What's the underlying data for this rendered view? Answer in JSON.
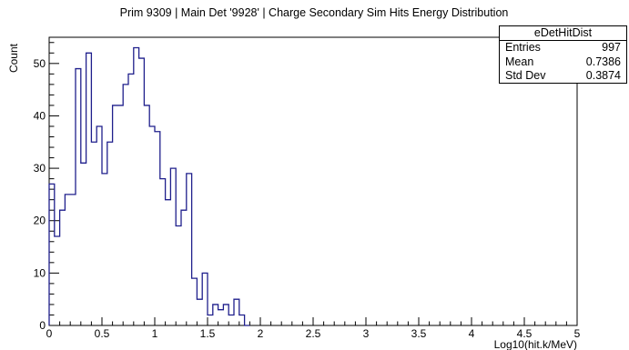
{
  "chart_data": {
    "type": "histogram",
    "title": "Prim 9309 | Main Det '9928' | Charge Secondary Sim Hits Energy Distribution",
    "xlabel": "Log10(hit.k/MeV)",
    "ylabel": "Count",
    "xlim": [
      0,
      5
    ],
    "ylim": [
      0,
      55
    ],
    "x_ticks": [
      0,
      0.5,
      1,
      1.5,
      2,
      2.5,
      3,
      3.5,
      4,
      4.5,
      5
    ],
    "x_tick_labels": [
      "0",
      "0.5",
      "1",
      "1.5",
      "2",
      "2.5",
      "3",
      "3.5",
      "4",
      "4.5",
      "5"
    ],
    "y_ticks": [
      0,
      10,
      20,
      30,
      40,
      50
    ],
    "y_tick_labels": [
      "0",
      "10",
      "20",
      "30",
      "40",
      "50"
    ],
    "bin_width": 0.05,
    "bin_edges_start": 0,
    "values": [
      27,
      17,
      22,
      25,
      25,
      49,
      31,
      52,
      35,
      38,
      29,
      35,
      42,
      42,
      46,
      48,
      53,
      51,
      42,
      38,
      37,
      28,
      24,
      30,
      19,
      22,
      29,
      9,
      5,
      10,
      2,
      4,
      3,
      4,
      2,
      5,
      2,
      0
    ],
    "line_color": "#1f1f8c",
    "stats": {
      "name": "eDetHitDist",
      "rows": [
        {
          "label": "Entries",
          "value": "997"
        },
        {
          "label": "Mean",
          "value": "0.7386"
        },
        {
          "label": "Std Dev",
          "value": "0.3874"
        }
      ]
    }
  }
}
